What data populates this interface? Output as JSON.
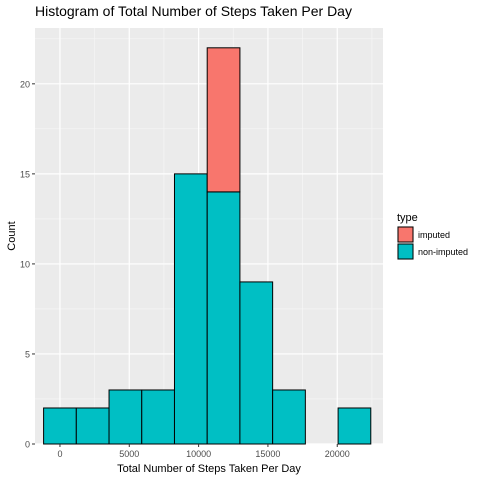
{
  "chart_data": {
    "type": "bar",
    "stacked": true,
    "title": "Histogram of Total Number of Steps Taken Per Day",
    "xlabel": "Total Number of Steps Taken Per Day",
    "ylabel": "Count",
    "xlim": [
      -1800,
      23300
    ],
    "ylim": [
      0,
      23.1
    ],
    "x_ticks": [
      0,
      5000,
      10000,
      15000,
      20000
    ],
    "x_tick_labels": [
      "0",
      "5000",
      "10000",
      "15000",
      "20000"
    ],
    "y_ticks": [
      0,
      5,
      10,
      15,
      20
    ],
    "y_tick_labels": [
      "0",
      "5",
      "10",
      "15",
      "20"
    ],
    "bins": [
      [
        -1180,
        1180
      ],
      [
        1180,
        3540
      ],
      [
        3540,
        5900
      ],
      [
        5900,
        8260
      ],
      [
        8260,
        10620
      ],
      [
        10620,
        12980
      ],
      [
        12980,
        15340
      ],
      [
        15340,
        17700
      ],
      [
        17700,
        20060
      ],
      [
        20060,
        22420
      ]
    ],
    "series": [
      {
        "name": "non-imputed",
        "color": "#00BFC4",
        "values": [
          2,
          2,
          3,
          3,
          15,
          14,
          9,
          3,
          0,
          2
        ]
      },
      {
        "name": "imputed",
        "color": "#F8766D",
        "values": [
          0,
          0,
          0,
          0,
          0,
          8,
          0,
          0,
          0,
          0
        ]
      }
    ],
    "legend": {
      "title": "type",
      "position": "right",
      "entries": [
        "imputed",
        "non-imputed"
      ]
    },
    "grid": true,
    "panel_background": "#EBEBEB",
    "bar_outline": "#000000"
  }
}
